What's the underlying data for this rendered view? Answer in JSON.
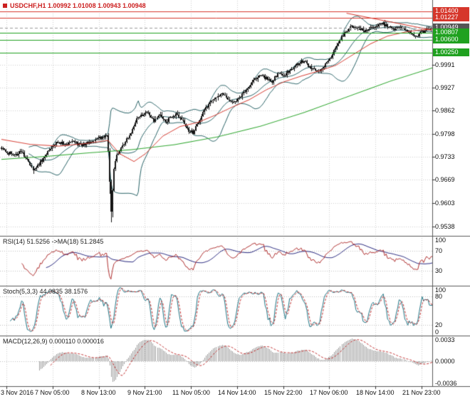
{
  "header": {
    "symbol_info": "USDCHF,H1 1.00992 1.01008 1.00943 1.00948"
  },
  "colors": {
    "background": "#ffffff",
    "grid": "#cfcfcf",
    "panel_border": "#5a5a5a",
    "axis_text": "#111111",
    "info_text": "#cc2020",
    "candle": "#141414",
    "bollinger": "#2a6468",
    "ma_red": "#d6362b",
    "ma_green": "#1fa11f",
    "level_red": "#d6362b",
    "level_green": "#1fa11f",
    "current_line": "#9a9a9a",
    "tag_red_bg": "#d6362b",
    "tag_green_bg": "#1fa11f",
    "tag_dark_bg": "#555555",
    "sub_level": "#c0c0c0",
    "rsi_line": "#b03030",
    "rsi_ma": "#26267e",
    "stoch_main": "#207585",
    "stoch_signal": "#c23030",
    "macd_hist": "#9f9f9f",
    "macd_signal": "#c23030"
  },
  "chart_data": {
    "type": "candlestick",
    "symbol": "USDCHF",
    "timeframe": "H1",
    "bar_count": 300,
    "ohlc_current": {
      "open": "1.00992",
      "high": "1.01008",
      "low": "1.00943",
      "close": "1.00948"
    },
    "price_path_anchors": [
      [
        0,
        0.9758
      ],
      [
        5,
        0.9745
      ],
      [
        10,
        0.9738
      ],
      [
        14,
        0.9752
      ],
      [
        18,
        0.9722
      ],
      [
        22,
        0.97
      ],
      [
        26,
        0.9712
      ],
      [
        30,
        0.9736
      ],
      [
        34,
        0.976
      ],
      [
        38,
        0.9775
      ],
      [
        44,
        0.9768
      ],
      [
        50,
        0.9776
      ],
      [
        56,
        0.9763
      ],
      [
        62,
        0.9778
      ],
      [
        68,
        0.9786
      ],
      [
        73,
        0.9792
      ],
      [
        74,
        0.9752
      ],
      [
        75,
        0.9668
      ],
      [
        76,
        0.9578
      ],
      [
        77,
        0.964
      ],
      [
        78,
        0.9698
      ],
      [
        80,
        0.9738
      ],
      [
        83,
        0.9757
      ],
      [
        86,
        0.9776
      ],
      [
        90,
        0.9801
      ],
      [
        94,
        0.9836
      ],
      [
        98,
        0.9851
      ],
      [
        102,
        0.9856
      ],
      [
        106,
        0.9833
      ],
      [
        110,
        0.9849
      ],
      [
        114,
        0.9831
      ],
      [
        118,
        0.9846
      ],
      [
        122,
        0.9852
      ],
      [
        126,
        0.9831
      ],
      [
        130,
        0.9807
      ],
      [
        133,
        0.98
      ],
      [
        136,
        0.9823
      ],
      [
        140,
        0.9856
      ],
      [
        144,
        0.9879
      ],
      [
        148,
        0.9897
      ],
      [
        152,
        0.9909
      ],
      [
        156,
        0.9899
      ],
      [
        160,
        0.9886
      ],
      [
        164,
        0.9893
      ],
      [
        168,
        0.9913
      ],
      [
        172,
        0.9933
      ],
      [
        176,
        0.9951
      ],
      [
        180,
        0.9963
      ],
      [
        184,
        0.9953
      ],
      [
        188,
        0.9943
      ],
      [
        192,
        0.9966
      ],
      [
        196,
        0.9959
      ],
      [
        200,
        0.9976
      ],
      [
        204,
        0.9989
      ],
      [
        208,
        1.0001
      ],
      [
        212,
        0.9993
      ],
      [
        216,
        0.9979
      ],
      [
        220,
        0.9973
      ],
      [
        224,
        0.9989
      ],
      [
        228,
        1.0005
      ],
      [
        232,
        1.0036
      ],
      [
        236,
        1.0069
      ],
      [
        240,
        1.0089
      ],
      [
        244,
        1.0099
      ],
      [
        248,
        1.0093
      ],
      [
        252,
        1.0083
      ],
      [
        256,
        1.0095
      ],
      [
        260,
        1.0101
      ],
      [
        264,
        1.0109
      ],
      [
        268,
        1.0099
      ],
      [
        272,
        1.0089
      ],
      [
        276,
        1.0097
      ],
      [
        280,
        1.0087
      ],
      [
        284,
        1.0079
      ],
      [
        288,
        1.0073
      ],
      [
        292,
        1.0083
      ],
      [
        296,
        1.0091
      ],
      [
        299,
        1.00948
      ]
    ],
    "wick_spikes": [
      {
        "bar": 22,
        "low": 0.9686
      },
      {
        "bar": 75,
        "low": 0.963
      },
      {
        "bar": 76,
        "low": 0.9549
      },
      {
        "bar": 77,
        "low": 0.9563
      },
      {
        "bar": 78,
        "low": 0.965
      }
    ],
    "overlays": {
      "bollinger": {
        "period": 20,
        "deviation": 2
      },
      "ma_red_anchors": [
        [
          0,
          0.9782
        ],
        [
          20,
          0.9768
        ],
        [
          40,
          0.9763
        ],
        [
          60,
          0.9771
        ],
        [
          74,
          0.9779
        ],
        [
          82,
          0.9742
        ],
        [
          92,
          0.972
        ],
        [
          100,
          0.9742
        ],
        [
          112,
          0.9791
        ],
        [
          124,
          0.9818
        ],
        [
          136,
          0.9829
        ],
        [
          148,
          0.9849
        ],
        [
          160,
          0.9872
        ],
        [
          172,
          0.9893
        ],
        [
          184,
          0.9921
        ],
        [
          196,
          0.9943
        ],
        [
          208,
          0.9959
        ],
        [
          220,
          0.9973
        ],
        [
          232,
          0.9989
        ],
        [
          244,
          1.0019
        ],
        [
          256,
          1.0049
        ],
        [
          268,
          1.0071
        ],
        [
          280,
          1.0082
        ],
        [
          290,
          1.0088
        ],
        [
          299,
          1.009
        ]
      ],
      "ma_green_anchors": [
        [
          0,
          0.9726
        ],
        [
          30,
          0.9734
        ],
        [
          60,
          0.9744
        ],
        [
          90,
          0.9753
        ],
        [
          120,
          0.9767
        ],
        [
          150,
          0.9789
        ],
        [
          180,
          0.9819
        ],
        [
          210,
          0.9857
        ],
        [
          240,
          0.9901
        ],
        [
          270,
          0.9945
        ],
        [
          299,
          0.9982
        ]
      ],
      "trendline_red": [
        [
          240,
          1.0135
        ],
        [
          299,
          1.0088
        ]
      ]
    },
    "horizontal_levels": {
      "red": [
        1.014,
        1.01227
      ],
      "green": [
        1.00807,
        1.006,
        1.0025
      ],
      "current": 1.00949
    },
    "y_axis": {
      "max": 1.017,
      "min": 0.9514,
      "ticks": [
        "0.9991",
        "0.9927",
        "0.9862",
        "0.9798",
        "0.9733",
        "0.9669",
        "0.9603",
        "0.9538"
      ],
      "tags": [
        {
          "text": "1.01400",
          "value": 1.014,
          "style": "red"
        },
        {
          "text": "1.01227",
          "value": 1.01227,
          "style": "red"
        },
        {
          "text": "1.00949",
          "value": 1.00949,
          "style": "dark"
        },
        {
          "text": "1.00807",
          "value": 1.00807,
          "style": "green"
        },
        {
          "text": "1.00600",
          "value": 1.006,
          "style": "green"
        },
        {
          "text": "1.00250",
          "value": 1.0025,
          "style": "green"
        }
      ]
    },
    "x_axis": {
      "labels": [
        {
          "bar": 4,
          "text": "3 Nov 2016"
        },
        {
          "bar": 36,
          "text": "7 Nov 05:00"
        },
        {
          "bar": 68,
          "text": "8 Nov 13:00"
        },
        {
          "bar": 100,
          "text": "9 Nov 21:00"
        },
        {
          "bar": 132,
          "text": "11 Nov 05:00"
        },
        {
          "bar": 164,
          "text": "14 Nov 14:00"
        },
        {
          "bar": 196,
          "text": "15 Nov 22:00"
        },
        {
          "bar": 228,
          "text": "17 Nov 06:00"
        },
        {
          "bar": 260,
          "text": "18 Nov 14:00"
        },
        {
          "bar": 292,
          "text": "21 Nov 23:00"
        }
      ]
    },
    "indicators": {
      "rsi": {
        "label": "RSI(14) 51.5256 ->MA(18) 51.2845",
        "period": 14,
        "ma_period": 18,
        "levels": [
          70,
          30
        ],
        "ticks": [
          "100",
          "70",
          "30"
        ],
        "range": [
          0,
          100
        ]
      },
      "stoch": {
        "label": "Stoch(5,3,3) 44.0835 38.1576",
        "k": 5,
        "d": 3,
        "slowing": 3,
        "levels": [
          80,
          20
        ],
        "ticks": [
          "100",
          "80",
          "20",
          "0"
        ],
        "range": [
          0,
          100
        ]
      },
      "macd": {
        "label": "MACD(12,26,9) 0.000110 0.000016",
        "fast": 12,
        "slow": 26,
        "signal": 9,
        "levels": [
          0
        ],
        "ticks": [
          "0.0033",
          "0.0000",
          "-0.0036"
        ]
      }
    }
  }
}
